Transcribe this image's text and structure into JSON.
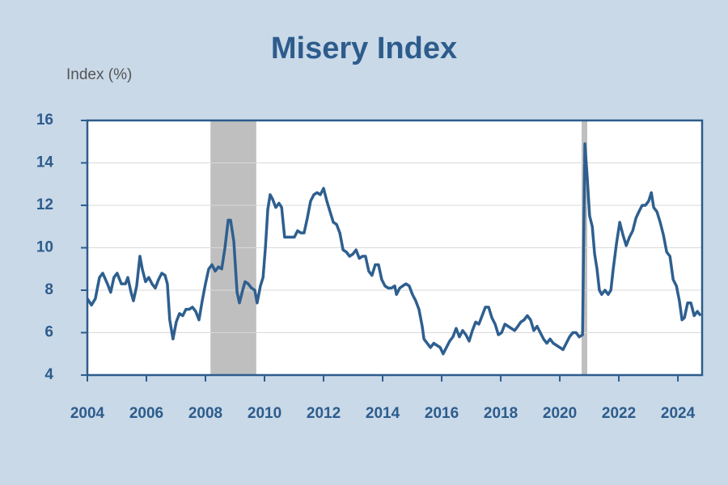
{
  "chart_data": {
    "type": "line",
    "title": "Misery Index",
    "y_label": "Index (%)",
    "xlim": [
      2004,
      2024.82
    ],
    "xticks": [
      2004,
      2006,
      2008,
      2010,
      2012,
      2014,
      2016,
      2018,
      2020,
      2022,
      2024
    ],
    "ylim": [
      4,
      16
    ],
    "yticks": [
      4,
      6,
      8,
      10,
      12,
      14,
      16
    ],
    "grid": true,
    "recessions": [
      {
        "start": 2008.17,
        "end": 2009.72
      },
      {
        "start": 2020.74,
        "end": 2020.93
      }
    ],
    "recession_color": "#bfbfbf",
    "series": [
      {
        "name": "Misery Index",
        "color": "#2e5f8f",
        "x": [
          2004.0,
          2004.14,
          2004.27,
          2004.41,
          2004.52,
          2004.68,
          2004.79,
          2004.9,
          2005.01,
          2005.15,
          2005.29,
          2005.37,
          2005.48,
          2005.56,
          2005.67,
          2005.78,
          2005.86,
          2005.97,
          2006.08,
          2006.19,
          2006.3,
          2006.41,
          2006.52,
          2006.63,
          2006.71,
          2006.79,
          2006.9,
          2007.01,
          2007.12,
          2007.23,
          2007.34,
          2007.45,
          2007.56,
          2007.67,
          2007.78,
          2007.89,
          2008.0,
          2008.11,
          2008.22,
          2008.33,
          2008.44,
          2008.55,
          2008.66,
          2008.77,
          2008.85,
          2008.96,
          2009.07,
          2009.15,
          2009.26,
          2009.34,
          2009.45,
          2009.56,
          2009.67,
          2009.75,
          2009.86,
          2009.95,
          2010.03,
          2010.11,
          2010.19,
          2010.27,
          2010.38,
          2010.49,
          2010.58,
          2010.68,
          2010.79,
          2010.9,
          2011.01,
          2011.12,
          2011.23,
          2011.34,
          2011.45,
          2011.56,
          2011.67,
          2011.78,
          2011.89,
          2012.0,
          2012.11,
          2012.22,
          2012.33,
          2012.44,
          2012.55,
          2012.66,
          2012.77,
          2012.88,
          2012.99,
          2013.1,
          2013.21,
          2013.32,
          2013.42,
          2013.53,
          2013.64,
          2013.75,
          2013.86,
          2013.97,
          2014.08,
          2014.19,
          2014.3,
          2014.41,
          2014.47,
          2014.58,
          2014.68,
          2014.79,
          2014.9,
          2015.01,
          2015.12,
          2015.23,
          2015.34,
          2015.4,
          2015.51,
          2015.62,
          2015.73,
          2015.84,
          2015.95,
          2016.05,
          2016.16,
          2016.27,
          2016.38,
          2016.49,
          2016.6,
          2016.71,
          2016.82,
          2016.93,
          2017.04,
          2017.15,
          2017.26,
          2017.37,
          2017.48,
          2017.59,
          2017.7,
          2017.81,
          2017.92,
          2018.03,
          2018.14,
          2018.25,
          2018.36,
          2018.47,
          2018.58,
          2018.68,
          2018.79,
          2018.9,
          2019.01,
          2019.12,
          2019.23,
          2019.34,
          2019.45,
          2019.56,
          2019.67,
          2019.78,
          2019.89,
          2020.0,
          2020.11,
          2020.22,
          2020.33,
          2020.44,
          2020.55,
          2020.66,
          2020.77,
          2020.85,
          2020.93,
          2021.01,
          2021.1,
          2021.18,
          2021.26,
          2021.34,
          2021.42,
          2021.53,
          2021.64,
          2021.73,
          2021.81,
          2021.92,
          2022.03,
          2022.14,
          2022.25,
          2022.36,
          2022.47,
          2022.58,
          2022.68,
          2022.79,
          2022.9,
          2023.01,
          2023.1,
          2023.18,
          2023.29,
          2023.4,
          2023.51,
          2023.62,
          2023.73,
          2023.84,
          2023.95,
          2024.05,
          2024.14,
          2024.22,
          2024.33,
          2024.44,
          2024.55,
          2024.66,
          2024.77
        ],
        "values": [
          7.6,
          7.3,
          7.6,
          8.6,
          8.8,
          8.3,
          7.9,
          8.6,
          8.8,
          8.3,
          8.3,
          8.6,
          7.9,
          7.5,
          8.2,
          9.6,
          9.0,
          8.4,
          8.6,
          8.3,
          8.1,
          8.5,
          8.8,
          8.7,
          8.3,
          6.6,
          5.7,
          6.5,
          6.9,
          6.8,
          7.1,
          7.1,
          7.2,
          7.0,
          6.6,
          7.5,
          8.3,
          9.0,
          9.2,
          8.9,
          9.1,
          9.0,
          10.0,
          11.3,
          11.3,
          10.3,
          7.9,
          7.4,
          8.0,
          8.4,
          8.3,
          8.1,
          8.0,
          7.4,
          8.2,
          8.6,
          10.0,
          11.8,
          12.5,
          12.3,
          11.9,
          12.1,
          11.9,
          10.5,
          10.5,
          10.5,
          10.5,
          10.8,
          10.7,
          10.7,
          11.4,
          12.2,
          12.5,
          12.6,
          12.5,
          12.8,
          12.2,
          11.7,
          11.2,
          11.1,
          10.7,
          9.9,
          9.8,
          9.6,
          9.7,
          9.9,
          9.5,
          9.6,
          9.6,
          8.9,
          8.7,
          9.2,
          9.2,
          8.5,
          8.2,
          8.1,
          8.1,
          8.2,
          7.8,
          8.1,
          8.2,
          8.3,
          8.2,
          7.8,
          7.5,
          7.1,
          6.3,
          5.7,
          5.5,
          5.3,
          5.5,
          5.4,
          5.3,
          5.0,
          5.3,
          5.6,
          5.8,
          6.2,
          5.8,
          6.1,
          5.9,
          5.6,
          6.1,
          6.5,
          6.4,
          6.8,
          7.2,
          7.2,
          6.7,
          6.4,
          5.9,
          6.0,
          6.4,
          6.3,
          6.2,
          6.1,
          6.3,
          6.5,
          6.6,
          6.8,
          6.6,
          6.1,
          6.3,
          6.0,
          5.7,
          5.5,
          5.7,
          5.5,
          5.4,
          5.3,
          5.2,
          5.5,
          5.8,
          6.0,
          6.0,
          5.8,
          5.9,
          14.9,
          13.3,
          11.5,
          11.0,
          9.7,
          9.0,
          8.0,
          7.8,
          8.0,
          7.8,
          8.0,
          9.0,
          10.2,
          11.2,
          10.6,
          10.1,
          10.5,
          10.8,
          11.4,
          11.7,
          12.0,
          12.0,
          12.2,
          12.6,
          11.9,
          11.7,
          11.2,
          10.6,
          9.8,
          9.6,
          8.5,
          8.2,
          7.5,
          6.6,
          6.7,
          7.4,
          7.4,
          6.8,
          7.0,
          6.8
        ]
      }
    ]
  }
}
